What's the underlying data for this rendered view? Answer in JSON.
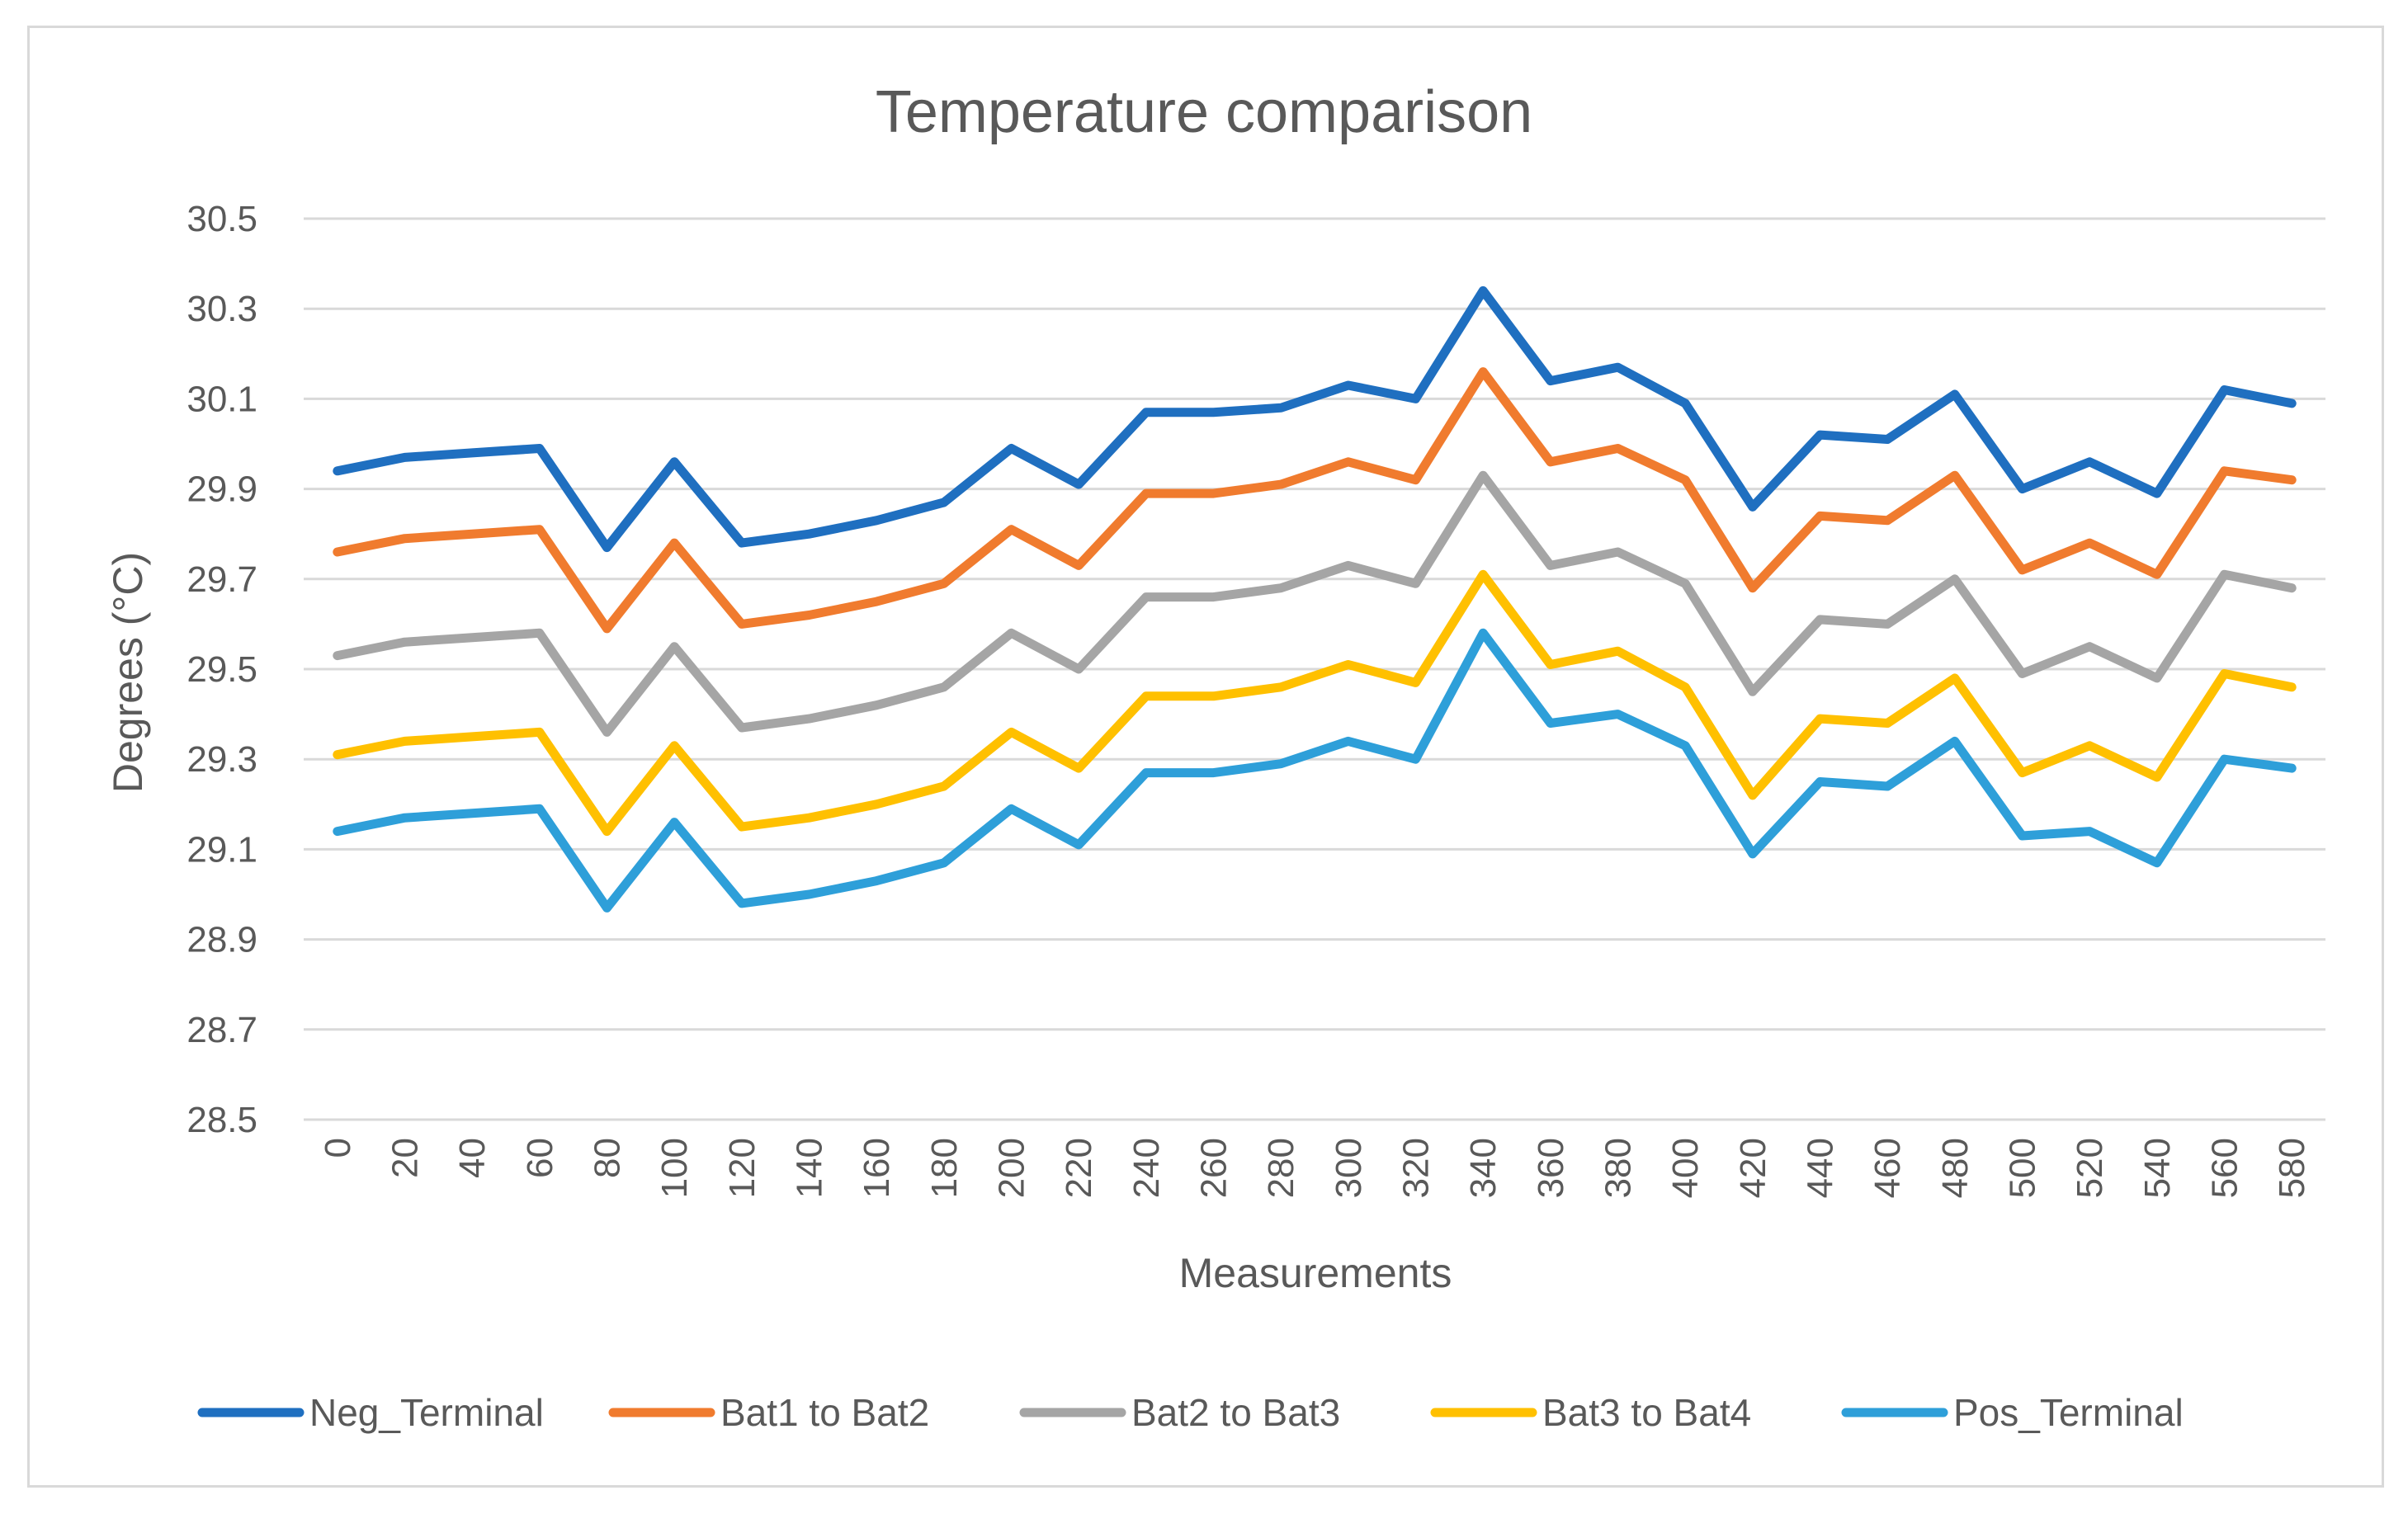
{
  "chart_data": {
    "type": "line",
    "title": "Temperature comparison",
    "xlabel": "Measurements",
    "ylabel": "Degrees (°C)",
    "ylim": [
      28.5,
      30.5
    ],
    "yticks": [
      "30.5",
      "30.3",
      "30.1",
      "29.9",
      "29.7",
      "29.5",
      "29.3",
      "29.1",
      "28.9",
      "28.7",
      "28.5"
    ],
    "ytick_values": [
      30.5,
      30.3,
      30.1,
      29.9,
      29.7,
      29.5,
      29.3,
      29.1,
      28.9,
      28.7,
      28.5
    ],
    "categories": [
      "0",
      "20",
      "40",
      "60",
      "80",
      "100",
      "120",
      "140",
      "160",
      "180",
      "200",
      "220",
      "240",
      "260",
      "280",
      "300",
      "320",
      "340",
      "360",
      "380",
      "400",
      "420",
      "440",
      "460",
      "480",
      "500",
      "520",
      "540",
      "560",
      "580"
    ],
    "grid": true,
    "legend_position": "bottom",
    "series": [
      {
        "name": "Neg_Terminal",
        "color": "#1f6fc0",
        "values": [
          29.94,
          29.97,
          29.98,
          29.99,
          29.77,
          29.96,
          29.78,
          29.8,
          29.83,
          29.87,
          29.99,
          29.91,
          30.07,
          30.07,
          30.08,
          30.13,
          30.1,
          30.34,
          30.14,
          30.17,
          30.09,
          29.86,
          30.02,
          30.01,
          30.11,
          29.9,
          29.96,
          29.89,
          30.12,
          30.09
        ]
      },
      {
        "name": "Bat1 to Bat2",
        "color": "#f07b2e",
        "values": [
          29.76,
          29.79,
          29.8,
          29.81,
          29.59,
          29.78,
          29.6,
          29.62,
          29.65,
          29.69,
          29.81,
          29.73,
          29.89,
          29.89,
          29.91,
          29.96,
          29.92,
          30.16,
          29.96,
          29.99,
          29.92,
          29.68,
          29.84,
          29.83,
          29.93,
          29.72,
          29.78,
          29.71,
          29.94,
          29.92
        ]
      },
      {
        "name": "Bat2 to Bat3",
        "color": "#a5a5a5",
        "values": [
          29.53,
          29.56,
          29.57,
          29.58,
          29.36,
          29.55,
          29.37,
          29.39,
          29.42,
          29.46,
          29.58,
          29.5,
          29.66,
          29.66,
          29.68,
          29.73,
          29.69,
          29.93,
          29.73,
          29.76,
          29.69,
          29.45,
          29.61,
          29.6,
          29.7,
          29.49,
          29.55,
          29.48,
          29.71,
          29.68
        ]
      },
      {
        "name": "Bat3 to Bat4",
        "color": "#ffc000",
        "values": [
          29.31,
          29.34,
          29.35,
          29.36,
          29.14,
          29.33,
          29.15,
          29.17,
          29.2,
          29.24,
          29.36,
          29.28,
          29.44,
          29.44,
          29.46,
          29.51,
          29.47,
          29.71,
          29.51,
          29.54,
          29.46,
          29.22,
          29.39,
          29.38,
          29.48,
          29.27,
          29.33,
          29.26,
          29.49,
          29.46
        ]
      },
      {
        "name": "Pos_Terminal",
        "color": "#2e9fd9",
        "values": [
          29.14,
          29.17,
          29.18,
          29.19,
          28.97,
          29.16,
          28.98,
          29.0,
          29.03,
          29.07,
          29.19,
          29.11,
          29.27,
          29.27,
          29.29,
          29.34,
          29.3,
          29.58,
          29.38,
          29.4,
          29.33,
          29.09,
          29.25,
          29.24,
          29.34,
          29.13,
          29.14,
          29.07,
          29.3,
          29.28
        ]
      }
    ]
  }
}
